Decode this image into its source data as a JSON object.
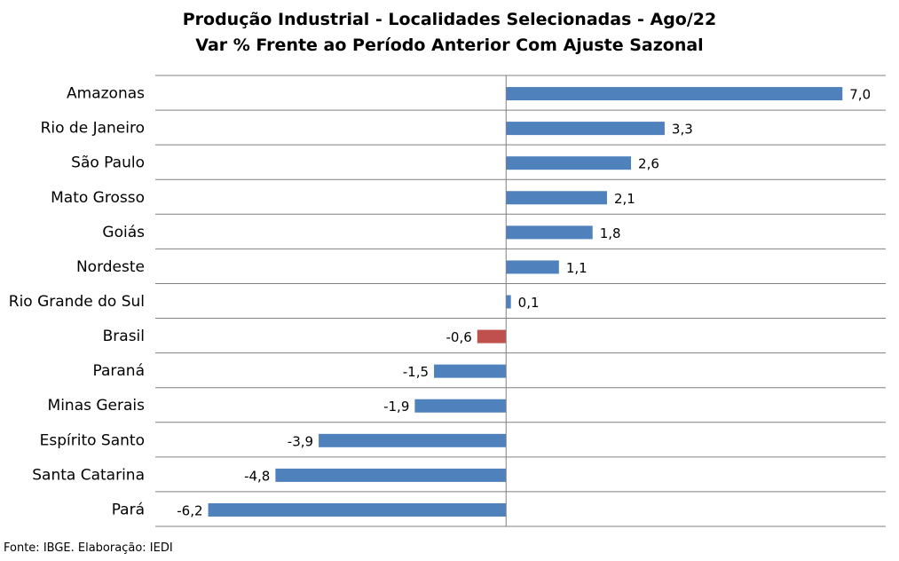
{
  "chart_data": {
    "type": "bar",
    "orientation": "horizontal",
    "title_line1": "Produção Industrial - Localidades Selecionadas - Ago/22",
    "title_line2": "Var % Frente ao Período Anterior Com Ajuste Sazonal",
    "categories": [
      "Amazonas",
      "Rio de Janeiro",
      "São Paulo",
      "Mato Grosso",
      "Goiás",
      "Nordeste",
      "Rio Grande do Sul",
      "Brasil",
      "Paraná",
      "Minas Gerais",
      "Espírito Santo",
      "Santa Catarina",
      "Pará"
    ],
    "values": [
      7.0,
      3.3,
      2.6,
      2.1,
      1.8,
      1.1,
      0.1,
      -0.6,
      -1.5,
      -1.9,
      -3.9,
      -4.8,
      -6.2
    ],
    "value_labels": [
      "7,0",
      "3,3",
      "2,6",
      "2,1",
      "1,8",
      "1,1",
      "0,1",
      "-0,6",
      "-1,5",
      "-1,9",
      "-3,9",
      "-4,8",
      "-6,2"
    ],
    "highlight_category": "Brasil",
    "xlim": [
      -7.3,
      7.9
    ],
    "grid": true,
    "colors": {
      "bar": "#4f81bd",
      "highlight": "#c0504d",
      "grid": "#808080"
    }
  },
  "source": "Fonte: IBGE. Elaboração: IEDI"
}
